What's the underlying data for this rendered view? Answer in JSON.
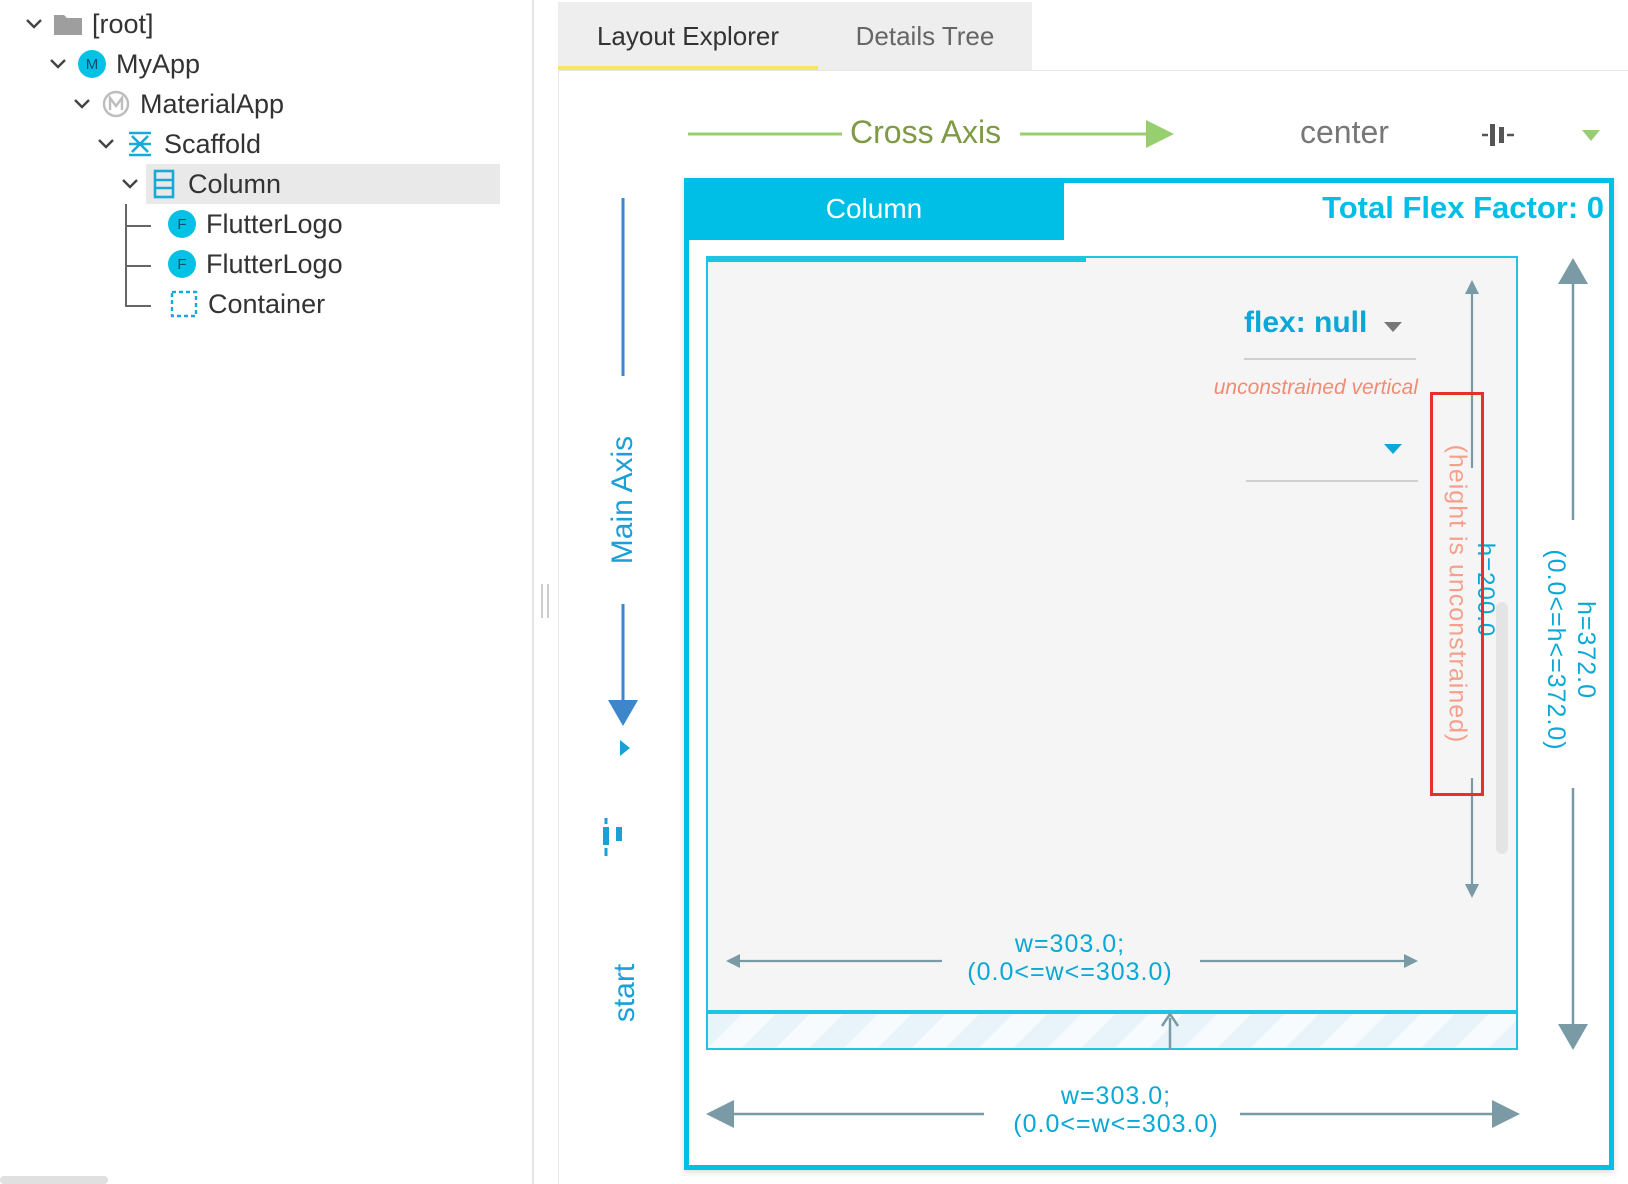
{
  "tree": {
    "nodes": [
      {
        "label": "[root]",
        "icon": "folder-icon"
      },
      {
        "label": "MyApp",
        "icon": "m-badge-icon",
        "badge": "M"
      },
      {
        "label": "MaterialApp",
        "icon": "material-app-icon"
      },
      {
        "label": "Scaffold",
        "icon": "scaffold-icon"
      },
      {
        "label": "Column",
        "icon": "column-icon",
        "selected": true
      },
      {
        "label": "FlutterLogo",
        "icon": "f-badge-icon",
        "badge": "F"
      },
      {
        "label": "FlutterLogo",
        "icon": "f-badge-icon",
        "badge": "F"
      },
      {
        "label": "Container",
        "icon": "container-icon"
      }
    ]
  },
  "tabs": {
    "layout_explorer": "Layout Explorer",
    "details_tree": "Details Tree",
    "active": "Layout Explorer"
  },
  "cross_axis": {
    "label": "Cross Axis",
    "alignment": "center"
  },
  "main_axis": {
    "label": "Main Axis",
    "alignment": "start"
  },
  "column": {
    "title": "Column",
    "total_flex": "Total Flex Factor: 0",
    "height": "h=372.0",
    "height_constraint": "(0.0<=h<=372.0)",
    "width": "w=303.0;",
    "width_constraint": "(0.0<=w<=303.0)"
  },
  "child": {
    "flex": "flex: null",
    "warning": "unconstrained vertical",
    "height": "h=200.0",
    "unconstrained_note": "(height is unconstrained)",
    "width": "w=303.0;",
    "width_constraint": "(0.0<=w<=303.0)"
  },
  "colors": {
    "accent": "#00bfe6",
    "cross_axis": "#98cf6e",
    "main_axis": "#3d86c9",
    "warning": "#f28b74",
    "highlight": "#e8302a",
    "tab_underline": "#f5e663"
  }
}
